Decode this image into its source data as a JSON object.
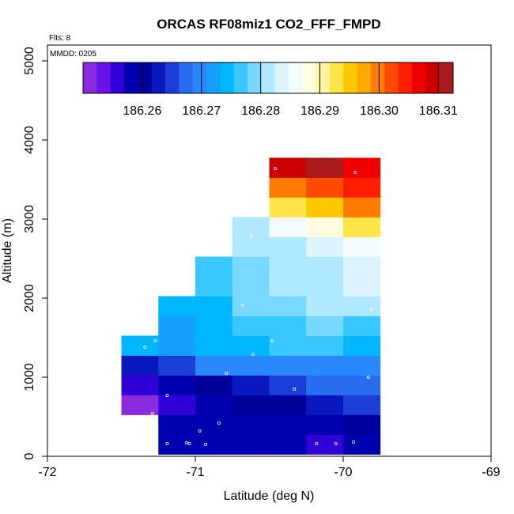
{
  "chart_data": {
    "type": "heatmap",
    "title": "ORCAS RF08miz1 CO2_FFF_FMPD",
    "xlabel": "Latitude (deg N)",
    "ylabel": "Altitude (m)",
    "xlim": [
      -72,
      -69
    ],
    "ylim": [
      0,
      5200
    ],
    "x_ticks": [
      -72,
      -71,
      -70,
      -69
    ],
    "x_tick_labels": [
      "-72",
      "-71",
      "-70",
      "-69"
    ],
    "y_ticks": [
      0,
      1000,
      2000,
      3000,
      4000,
      5000
    ],
    "y_tick_labels": [
      "0",
      "1000",
      "2000",
      "3000",
      "4000",
      "5000"
    ],
    "notes": {
      "flights": "Flts: 8",
      "date": "MMDD: 0205"
    },
    "colorbar": {
      "min": 186.25,
      "max": 186.3125,
      "ticks": [
        186.26,
        186.27,
        186.28,
        186.29,
        186.3,
        186.31
      ],
      "tick_labels": [
        "186.26",
        "186.27",
        "186.28",
        "186.29",
        "186.30",
        "186.31"
      ],
      "colors": [
        "#8a2be2",
        "#6a10e8",
        "#2f00d8",
        "#0000b0",
        "#00009a",
        "#0a18c0",
        "#1c3ed8",
        "#2a6cf0",
        "#2a88ff",
        "#169fff",
        "#00b7ff",
        "#38c8ff",
        "#78d8ff",
        "#b0e8ff",
        "#ddf4ff",
        "#f2fcff",
        "#fffce0",
        "#fff7a0",
        "#ffe44a",
        "#ffc800",
        "#ffa800",
        "#ff7c00",
        "#ff4a00",
        "#ff1e00",
        "#f00000",
        "#cc0000",
        "#aa1a1a"
      ]
    },
    "cells": [
      {
        "lat": -71.375,
        "alt": 650,
        "value": 186.251
      },
      {
        "lat": -71.375,
        "alt": 900,
        "value": 186.2563
      },
      {
        "lat": -71.375,
        "alt": 1150,
        "value": 186.263
      },
      {
        "lat": -71.375,
        "alt": 1400,
        "value": 186.2735
      },
      {
        "lat": -71.125,
        "alt": 150,
        "value": 186.2585
      },
      {
        "lat": -71.125,
        "alt": 400,
        "value": 186.2575
      },
      {
        "lat": -71.125,
        "alt": 650,
        "value": 186.2552
      },
      {
        "lat": -71.125,
        "alt": 900,
        "value": 186.2575
      },
      {
        "lat": -71.125,
        "alt": 1150,
        "value": 186.2655
      },
      {
        "lat": -71.125,
        "alt": 1400,
        "value": 186.2718
      },
      {
        "lat": -71.125,
        "alt": 1650,
        "value": 186.2725
      },
      {
        "lat": -71.125,
        "alt": 1900,
        "value": 186.2735
      },
      {
        "lat": -70.875,
        "alt": 150,
        "value": 186.2575
      },
      {
        "lat": -70.875,
        "alt": 400,
        "value": 186.2575
      },
      {
        "lat": -70.875,
        "alt": 650,
        "value": 186.2578
      },
      {
        "lat": -70.875,
        "alt": 900,
        "value": 186.2595
      },
      {
        "lat": -70.875,
        "alt": 1150,
        "value": 186.2705
      },
      {
        "lat": -70.875,
        "alt": 1400,
        "value": 186.2745
      },
      {
        "lat": -70.875,
        "alt": 1650,
        "value": 186.2745
      },
      {
        "lat": -70.875,
        "alt": 1900,
        "value": 186.275
      },
      {
        "lat": -70.875,
        "alt": 2150,
        "value": 186.277
      },
      {
        "lat": -70.875,
        "alt": 2400,
        "value": 186.2768
      },
      {
        "lat": -70.625,
        "alt": 150,
        "value": 186.2575
      },
      {
        "lat": -70.625,
        "alt": 400,
        "value": 186.2575
      },
      {
        "lat": -70.625,
        "alt": 650,
        "value": 186.2598
      },
      {
        "lat": -70.625,
        "alt": 900,
        "value": 186.2628
      },
      {
        "lat": -70.625,
        "alt": 1150,
        "value": 186.2705
      },
      {
        "lat": -70.625,
        "alt": 1400,
        "value": 186.2753
      },
      {
        "lat": -70.625,
        "alt": 1650,
        "value": 186.2758
      },
      {
        "lat": -70.625,
        "alt": 1900,
        "value": 186.2778
      },
      {
        "lat": -70.625,
        "alt": 2150,
        "value": 186.278
      },
      {
        "lat": -70.625,
        "alt": 2400,
        "value": 186.279
      },
      {
        "lat": -70.625,
        "alt": 2650,
        "value": 186.2805
      },
      {
        "lat": -70.625,
        "alt": 2900,
        "value": 186.2815
      },
      {
        "lat": -70.375,
        "alt": 150,
        "value": 186.2578
      },
      {
        "lat": -70.375,
        "alt": 400,
        "value": 186.2585
      },
      {
        "lat": -70.375,
        "alt": 650,
        "value": 186.2612
      },
      {
        "lat": -70.375,
        "alt": 900,
        "value": 186.2658
      },
      {
        "lat": -70.375,
        "alt": 1150,
        "value": 186.2705
      },
      {
        "lat": -70.375,
        "alt": 1400,
        "value": 186.2772
      },
      {
        "lat": -70.375,
        "alt": 1650,
        "value": 186.2775
      },
      {
        "lat": -70.375,
        "alt": 1900,
        "value": 186.2795
      },
      {
        "lat": -70.375,
        "alt": 2150,
        "value": 186.2808
      },
      {
        "lat": -70.375,
        "alt": 2400,
        "value": 186.2812
      },
      {
        "lat": -70.375,
        "alt": 2650,
        "value": 186.2818
      },
      {
        "lat": -70.375,
        "alt": 2900,
        "value": 186.2858
      },
      {
        "lat": -70.375,
        "alt": 3150,
        "value": 186.2918
      },
      {
        "lat": -70.375,
        "alt": 3400,
        "value": 186.2995
      },
      {
        "lat": -70.375,
        "alt": 3650,
        "value": 186.309
      },
      {
        "lat": -70.125,
        "alt": 150,
        "value": 186.2568
      },
      {
        "lat": -70.125,
        "alt": 400,
        "value": 186.2592
      },
      {
        "lat": -70.125,
        "alt": 650,
        "value": 186.2632
      },
      {
        "lat": -70.125,
        "alt": 900,
        "value": 186.267
      },
      {
        "lat": -70.125,
        "alt": 1150,
        "value": 186.2705
      },
      {
        "lat": -70.125,
        "alt": 1400,
        "value": 186.2755
      },
      {
        "lat": -70.125,
        "alt": 1650,
        "value": 186.2788
      },
      {
        "lat": -70.125,
        "alt": 1900,
        "value": 186.2812
      },
      {
        "lat": -70.125,
        "alt": 2150,
        "value": 186.2818
      },
      {
        "lat": -70.125,
        "alt": 2400,
        "value": 186.2822
      },
      {
        "lat": -70.125,
        "alt": 2650,
        "value": 186.2835
      },
      {
        "lat": -70.125,
        "alt": 2900,
        "value": 186.2885
      },
      {
        "lat": -70.125,
        "alt": 3150,
        "value": 186.296
      },
      {
        "lat": -70.125,
        "alt": 3400,
        "value": 186.3028
      },
      {
        "lat": -70.125,
        "alt": 3650,
        "value": 186.3112
      },
      {
        "lat": -69.875,
        "alt": 150,
        "value": 186.2592
      },
      {
        "lat": -69.875,
        "alt": 400,
        "value": 186.2598
      },
      {
        "lat": -69.875,
        "alt": 650,
        "value": 186.2648
      },
      {
        "lat": -69.875,
        "alt": 900,
        "value": 186.2678
      },
      {
        "lat": -69.875,
        "alt": 1150,
        "value": 186.2705
      },
      {
        "lat": -69.875,
        "alt": 1400,
        "value": 186.2732
      },
      {
        "lat": -69.875,
        "alt": 1650,
        "value": 186.2772
      },
      {
        "lat": -69.875,
        "alt": 1900,
        "value": 186.2818
      },
      {
        "lat": -69.875,
        "alt": 2150,
        "value": 186.2825
      },
      {
        "lat": -69.875,
        "alt": 2400,
        "value": 186.2832
      },
      {
        "lat": -69.875,
        "alt": 2650,
        "value": 186.2848
      },
      {
        "lat": -69.875,
        "alt": 2900,
        "value": 186.2925
      },
      {
        "lat": -69.875,
        "alt": 3150,
        "value": 186.2988
      },
      {
        "lat": -69.875,
        "alt": 3400,
        "value": 186.3055
      },
      {
        "lat": -69.875,
        "alt": 3650,
        "value": 186.3078
      }
    ],
    "cell_size": {
      "lat": 0.25,
      "alt": 250
    },
    "samples": [
      {
        "lat": -71.34,
        "alt": 1380
      },
      {
        "lat": -71.27,
        "alt": 1460
      },
      {
        "lat": -71.29,
        "alt": 540
      },
      {
        "lat": -71.19,
        "alt": 770
      },
      {
        "lat": -71.19,
        "alt": 160
      },
      {
        "lat": -71.06,
        "alt": 170
      },
      {
        "lat": -71.04,
        "alt": 160
      },
      {
        "lat": -70.97,
        "alt": 320
      },
      {
        "lat": -70.93,
        "alt": 150
      },
      {
        "lat": -70.84,
        "alt": 420
      },
      {
        "lat": -70.79,
        "alt": 1050
      },
      {
        "lat": -70.68,
        "alt": 1910
      },
      {
        "lat": -70.62,
        "alt": 2780
      },
      {
        "lat": -70.61,
        "alt": 1290
      },
      {
        "lat": -70.48,
        "alt": 1460
      },
      {
        "lat": -70.46,
        "alt": 3640
      },
      {
        "lat": -70.33,
        "alt": 850
      },
      {
        "lat": -70.18,
        "alt": 160
      },
      {
        "lat": -70.05,
        "alt": 160
      },
      {
        "lat": -69.93,
        "alt": 180
      },
      {
        "lat": -69.92,
        "alt": 3590
      },
      {
        "lat": -69.83,
        "alt": 1000
      },
      {
        "lat": -69.81,
        "alt": 1860
      }
    ]
  }
}
